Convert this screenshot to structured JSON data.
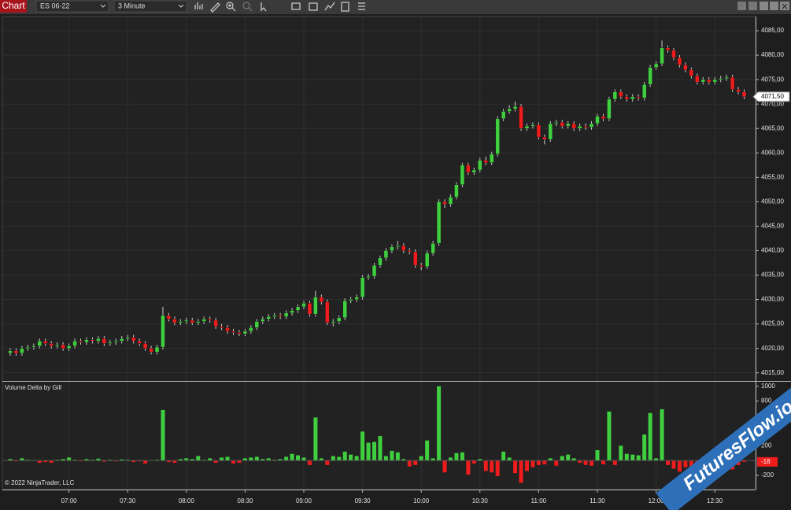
{
  "toolbar": {
    "chart_button": "Chart",
    "instrument": "ES 06-22",
    "interval": "3 Minute"
  },
  "chart_data": [
    {
      "type": "candlestick",
      "x": [
        "06:30",
        "06:33",
        "06:36",
        "06:39",
        "06:42",
        "06:45",
        "06:48",
        "06:51",
        "06:54",
        "06:57",
        "07:00",
        "07:03",
        "07:06",
        "07:09",
        "07:12",
        "07:15",
        "07:18",
        "07:21",
        "07:24",
        "07:27",
        "07:30",
        "07:33",
        "07:36",
        "07:39",
        "07:42",
        "07:45",
        "07:48",
        "07:51",
        "07:54",
        "07:57",
        "08:00",
        "08:03",
        "08:06",
        "08:09",
        "08:12",
        "08:15",
        "08:18",
        "08:21",
        "08:24",
        "08:27",
        "08:30",
        "08:33",
        "08:36",
        "08:39",
        "08:42",
        "08:45",
        "08:48",
        "08:51",
        "08:54",
        "08:57",
        "09:00",
        "09:03",
        "09:06",
        "09:09",
        "09:12",
        "09:15",
        "09:18",
        "09:21",
        "09:24",
        "09:27",
        "09:30",
        "09:33",
        "09:36",
        "09:39",
        "09:42",
        "09:45",
        "09:48",
        "09:51",
        "09:54",
        "09:57",
        "10:00",
        "10:03",
        "10:06",
        "10:09",
        "10:12",
        "10:15",
        "10:18",
        "10:21",
        "10:24",
        "10:27",
        "10:30",
        "10:33",
        "10:36",
        "10:39",
        "10:42",
        "10:45",
        "10:48",
        "10:51",
        "10:54",
        "10:57",
        "11:00",
        "11:03",
        "11:06",
        "11:09",
        "11:12",
        "11:15",
        "11:18",
        "11:21",
        "11:24",
        "11:27",
        "11:30",
        "11:33",
        "11:36",
        "11:39",
        "11:42",
        "11:45",
        "11:48",
        "11:51",
        "11:54",
        "11:57",
        "12:00",
        "12:03",
        "12:06",
        "12:09",
        "12:12",
        "12:15",
        "12:18",
        "12:21",
        "12:24",
        "12:27",
        "12:30",
        "12:33",
        "12:36",
        "12:39",
        "12:42",
        "12:45"
      ],
      "open": [
        4019,
        4019.5,
        4019,
        4020,
        4020.25,
        4020.5,
        4021.5,
        4021,
        4020.5,
        4020.75,
        4020,
        4020.5,
        4021.5,
        4021.25,
        4021.75,
        4021.5,
        4022,
        4021,
        4021.25,
        4021.5,
        4022,
        4022.25,
        4021.5,
        4021,
        4020,
        4019.25,
        4020.25,
        4026.75,
        4026,
        4025.25,
        4025.5,
        4025.75,
        4025.25,
        4025.5,
        4026,
        4025.75,
        4024.5,
        4024.25,
        4023.5,
        4023.25,
        4023,
        4023.5,
        4024.25,
        4025.5,
        4026,
        4026.5,
        4026.75,
        4026.5,
        4027.25,
        4027.75,
        4028.5,
        4029.25,
        4027,
        4030.5,
        4029.5,
        4025.25,
        4025.5,
        4026.25,
        4029.75,
        4030,
        4030.5,
        4034.5,
        4034.75,
        4037,
        4038.5,
        4040,
        4040.75,
        4041,
        4040,
        4039.75,
        4037,
        4036.75,
        4039.5,
        4041.5,
        4050,
        4049.5,
        4051,
        4053.5,
        4057.5,
        4056,
        4056.5,
        4058.5,
        4058,
        4059.75,
        4067,
        4068.5,
        4069,
        4069.5,
        4065,
        4065.5,
        4065.75,
        4063.25,
        4062.75,
        4066,
        4066.25,
        4065.5,
        4066,
        4065,
        4065.5,
        4065.25,
        4066,
        4067.5,
        4067,
        4071,
        4072.5,
        4071.5,
        4071,
        4071.5,
        4071.25,
        4074,
        4077.5,
        4078.25,
        4081.5,
        4081,
        4079.5,
        4078,
        4077,
        4075.75,
        4074.5,
        4075,
        4074.5,
        4075,
        4075.25,
        4075.5,
        4073,
        4072.5
      ],
      "high": [
        4020,
        4020,
        4020.5,
        4020.75,
        4021,
        4022,
        4022,
        4021.5,
        4021.25,
        4021.25,
        4021,
        4022,
        4022,
        4022.25,
        4022.25,
        4022.5,
        4022.5,
        4021.75,
        4022,
        4022.5,
        4022.75,
        4022.75,
        4022,
        4021.5,
        4020.5,
        4020.75,
        4028.5,
        4027.25,
        4026.5,
        4026,
        4026.25,
        4026.25,
        4026,
        4026.5,
        4026.5,
        4026.25,
        4025,
        4024.75,
        4024,
        4023.75,
        4024,
        4024.75,
        4026,
        4026.5,
        4027,
        4027.25,
        4027.25,
        4027.75,
        4028.25,
        4029,
        4029.75,
        4029.75,
        4031.75,
        4031,
        4030,
        4026,
        4026.75,
        4030.25,
        4030.5,
        4031,
        4035,
        4035.25,
        4037.5,
        4039,
        4040.5,
        4041.25,
        4042,
        4041.5,
        4040.5,
        4040.25,
        4037.5,
        4040,
        4042,
        4050.5,
        4050.5,
        4051.5,
        4054,
        4058,
        4058,
        4057,
        4059,
        4059.25,
        4060.25,
        4067.5,
        4069,
        4069.75,
        4070.5,
        4070,
        4066,
        4066.25,
        4066.25,
        4063.75,
        4066.5,
        4066.75,
        4066.75,
        4066.5,
        4066.5,
        4066,
        4066,
        4066.5,
        4068,
        4068,
        4071.5,
        4073,
        4073,
        4072,
        4072,
        4072,
        4074.5,
        4078,
        4078.75,
        4083,
        4082,
        4081.5,
        4080,
        4078.5,
        4077.5,
        4076.25,
        4075.5,
        4075.5,
        4075.5,
        4075.75,
        4076,
        4076,
        4073.5,
        4073
      ],
      "low": [
        4018.5,
        4018.5,
        4018.5,
        4019.5,
        4019.75,
        4020,
        4020.5,
        4020,
        4020,
        4019.5,
        4019.5,
        4020,
        4020.75,
        4020.75,
        4021,
        4021,
        4020.5,
        4020.5,
        4020.75,
        4021,
        4021.5,
        4021,
        4020.5,
        4019.5,
        4018.75,
        4018.75,
        4019.75,
        4025.5,
        4024.75,
        4024.75,
        4025,
        4024.75,
        4024.75,
        4025,
        4025.25,
        4024,
        4023.75,
        4023,
        4022.75,
        4022.5,
        4022.5,
        4023,
        4023.75,
        4025,
        4025.5,
        4026,
        4026,
        4026,
        4026.75,
        4027.25,
        4028,
        4026.5,
        4026.5,
        4029,
        4024.75,
        4024.5,
        4025,
        4025.75,
        4029.25,
        4029.5,
        4030,
        4034,
        4034.25,
        4036.5,
        4038,
        4039.5,
        4040.25,
        4039.5,
        4039.25,
        4036.5,
        4036,
        4036.25,
        4039,
        4041,
        4048.75,
        4049,
        4050.5,
        4053,
        4055.5,
        4055.5,
        4056,
        4057.5,
        4057.5,
        4059.25,
        4066.5,
        4068,
        4068.5,
        4064.5,
        4064.5,
        4065,
        4062.75,
        4061.75,
        4062.25,
        4065.5,
        4065,
        4065,
        4064.5,
        4064.5,
        4064.75,
        4064.75,
        4065.5,
        4066.5,
        4066.5,
        4070.5,
        4071,
        4070.5,
        4070.5,
        4070.75,
        4070.75,
        4073.5,
        4077,
        4077.75,
        4080.5,
        4079,
        4077.5,
        4076.5,
        4075.25,
        4074,
        4074,
        4074,
        4074,
        4074.5,
        4074.75,
        4072.5,
        4072,
        4071
      ],
      "close": [
        4019.5,
        4019,
        4020,
        4020.25,
        4020.5,
        4021.5,
        4021,
        4020.5,
        4020.75,
        4020,
        4020.5,
        4021.5,
        4021.25,
        4021.75,
        4021.5,
        4022,
        4021,
        4021.25,
        4021.5,
        4022,
        4022.25,
        4021.5,
        4021,
        4020,
        4019.25,
        4020.25,
        4026.75,
        4026,
        4025.25,
        4025.5,
        4025.75,
        4025.25,
        4025.5,
        4026,
        4025.75,
        4024.5,
        4024.25,
        4023.5,
        4023.25,
        4023,
        4023.5,
        4024.25,
        4025.5,
        4026,
        4026.5,
        4026.75,
        4026.5,
        4027.25,
        4027.75,
        4028.5,
        4029.25,
        4027,
        4030.5,
        4029.5,
        4025.25,
        4025.5,
        4026.25,
        4029.75,
        4030,
        4030.5,
        4034.5,
        4034.75,
        4037,
        4038.5,
        4040,
        4040.75,
        4041,
        4040,
        4039.75,
        4037,
        4036.75,
        4039.5,
        4041.5,
        4050,
        4049.5,
        4051,
        4053.5,
        4057.5,
        4056,
        4056.5,
        4058.5,
        4058,
        4059.75,
        4067,
        4068.5,
        4069,
        4069.5,
        4065,
        4065.5,
        4065.75,
        4063.25,
        4062.75,
        4066,
        4066.25,
        4065.5,
        4066,
        4065,
        4065.5,
        4065.25,
        4066,
        4067.5,
        4067,
        4071,
        4072.5,
        4071.5,
        4071,
        4071.5,
        4071.25,
        4074,
        4077.5,
        4078.25,
        4081.5,
        4081,
        4079.5,
        4078,
        4077,
        4075.75,
        4074.5,
        4075,
        4074.5,
        4075,
        4075.25,
        4075.5,
        4073,
        4072.5,
        4071.5
      ],
      "up_color": "#3fcf3f",
      "down_color": "#ee1c1c",
      "ylim": [
        4013.5,
        4087.75
      ],
      "yticks": [
        {
          "value": 4015,
          "label": "4015,00"
        },
        {
          "value": 4020,
          "label": "4020,00"
        },
        {
          "value": 4025,
          "label": "4025,00"
        },
        {
          "value": 4030,
          "label": "4030,00"
        },
        {
          "value": 4035,
          "label": "4035,00"
        },
        {
          "value": 4040,
          "label": "4040,00"
        },
        {
          "value": 4045,
          "label": "4045,00"
        },
        {
          "value": 4050,
          "label": "4050,00"
        },
        {
          "value": 4055,
          "label": "4055,00"
        },
        {
          "value": 4060,
          "label": "4060,00"
        },
        {
          "value": 4065,
          "label": "4065,00"
        },
        {
          "value": 4070,
          "label": "4070,00"
        },
        {
          "value": 4075,
          "label": "4075,00"
        },
        {
          "value": 4080,
          "label": "4080,00"
        },
        {
          "value": 4085,
          "label": "4085,00"
        }
      ],
      "xticks": [
        "07:00",
        "07:30",
        "08:00",
        "08:30",
        "09:00",
        "09:30",
        "10:00",
        "10:30",
        "11:00",
        "11:30",
        "12:00",
        "12:30"
      ],
      "last_price": {
        "value": 4071.5,
        "label": "4071,50"
      },
      "grid": true
    },
    {
      "type": "bar",
      "title": "Volume Delta by Gill",
      "values": [
        20,
        -10,
        30,
        10,
        5,
        -30,
        -20,
        -30,
        10,
        20,
        40,
        10,
        -10,
        20,
        10,
        25,
        -15,
        10,
        -10,
        15,
        10,
        -20,
        -10,
        -40,
        5,
        10,
        680,
        -20,
        -30,
        20,
        30,
        20,
        60,
        10,
        30,
        -30,
        40,
        50,
        -40,
        -30,
        30,
        40,
        50,
        20,
        30,
        10,
        20,
        50,
        90,
        70,
        40,
        -60,
        580,
        30,
        -60,
        60,
        50,
        120,
        80,
        60,
        390,
        240,
        250,
        330,
        60,
        130,
        110,
        20,
        -80,
        -60,
        60,
        270,
        30,
        1000,
        -160,
        40,
        100,
        110,
        -190,
        -40,
        20,
        -140,
        -160,
        -210,
        120,
        40,
        -170,
        -300,
        -140,
        -90,
        -60,
        -50,
        30,
        -70,
        60,
        80,
        30,
        -30,
        -60,
        -70,
        140,
        -50,
        660,
        -60,
        200,
        90,
        80,
        70,
        350,
        640,
        30,
        690,
        -60,
        -110,
        -150,
        -90,
        -130,
        -180,
        -60,
        -40,
        20,
        30,
        40,
        -120,
        -60,
        -18
      ],
      "up_color": "#3fcf3f",
      "down_color": "#ee1c1c",
      "ylim": [
        -390,
        1050
      ],
      "yticks": [
        1000,
        800,
        200,
        -200
      ]
    }
  ],
  "copyright": "© 2022 NinjaTrader, LLC",
  "watermark": "FuturesFlow.io"
}
